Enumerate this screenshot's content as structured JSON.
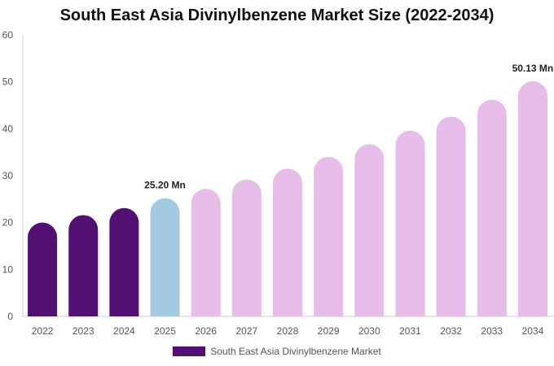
{
  "chart_data": {
    "type": "bar",
    "title": "South East Asia Divinylbenzene Market Size (2022-2034)",
    "categories": [
      "2022",
      "2023",
      "2024",
      "2025",
      "2026",
      "2027",
      "2028",
      "2029",
      "2030",
      "2031",
      "2032",
      "2033",
      "2034"
    ],
    "series": [
      {
        "name": "South East Asia Divinylbenzene Market",
        "values": [
          20.0,
          21.6,
          23.1,
          25.2,
          27.2,
          29.2,
          31.5,
          34.0,
          36.7,
          39.6,
          42.6,
          46.2,
          50.13
        ]
      }
    ],
    "ylim": [
      0,
      60
    ],
    "yticks": [
      0,
      10,
      20,
      30,
      40,
      50,
      60
    ],
    "data_labels": [
      {
        "index": 3,
        "text": "25.20 Mn"
      },
      {
        "index": 12,
        "text": "50.13 Mn"
      }
    ],
    "colors": {
      "historical": "#521072",
      "base_year": "#a3cade",
      "forecast": "#e6bde8",
      "axis": "#cccccc"
    },
    "bar_color_groups": [
      "historical",
      "historical",
      "historical",
      "base_year",
      "forecast",
      "forecast",
      "forecast",
      "forecast",
      "forecast",
      "forecast",
      "forecast",
      "forecast",
      "forecast"
    ],
    "legend_position": "bottom",
    "grid": false
  }
}
